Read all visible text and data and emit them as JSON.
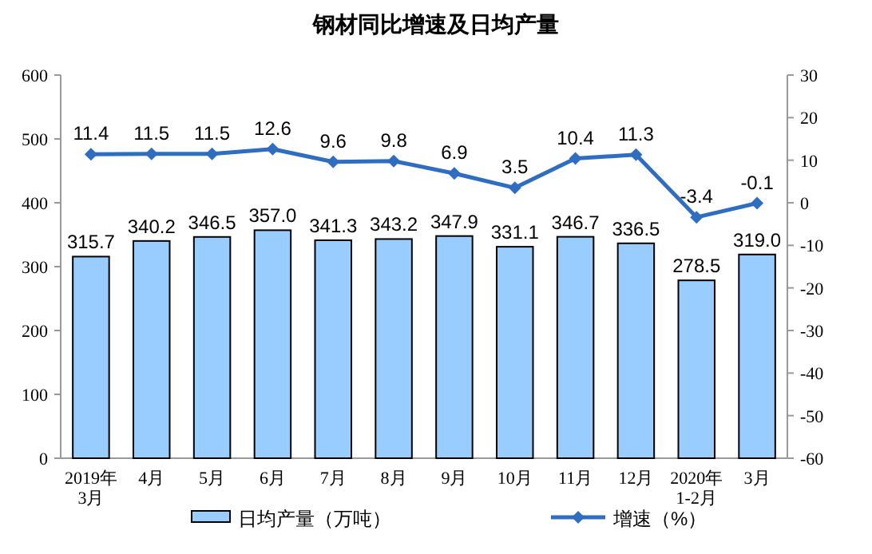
{
  "chart_data": {
    "type": "bar",
    "title": "钢材同比增速及日均产量",
    "categories": [
      "2019年\n3月",
      "4月",
      "5月",
      "6月",
      "7月",
      "8月",
      "9月",
      "10月",
      "11月",
      "12月",
      "2020年\n1-2月",
      "3月"
    ],
    "series": [
      {
        "name": "日均产量（万吨）",
        "color": "#99ccff",
        "values": [
          315.7,
          340.2,
          346.5,
          357.0,
          341.3,
          343.2,
          347.9,
          331.1,
          346.7,
          336.5,
          278.5,
          319.0
        ],
        "value_labels": [
          "315.7",
          "340.2",
          "346.5",
          "357.0",
          "341.3",
          "343.2",
          "347.9",
          "331.1",
          "346.7",
          "336.5",
          "278.5",
          "319.0"
        ]
      },
      {
        "name": "增速（%）",
        "type": "line",
        "axis": "y2",
        "color": "#2e6dbf",
        "marker": "diamond",
        "values": [
          11.4,
          11.5,
          11.5,
          12.6,
          9.6,
          9.8,
          6.9,
          3.5,
          10.4,
          11.3,
          -3.4,
          -0.1
        ]
      }
    ],
    "ylim": [
      0,
      600
    ],
    "yticks": [
      0,
      100,
      200,
      300,
      400,
      500,
      600
    ],
    "y2lim": [
      -60,
      30
    ],
    "y2ticks": [
      -60,
      -50,
      -40,
      -30,
      -20,
      -10,
      0,
      10,
      20,
      30
    ],
    "data_labels": true,
    "grid": false,
    "legend": "bottom"
  }
}
